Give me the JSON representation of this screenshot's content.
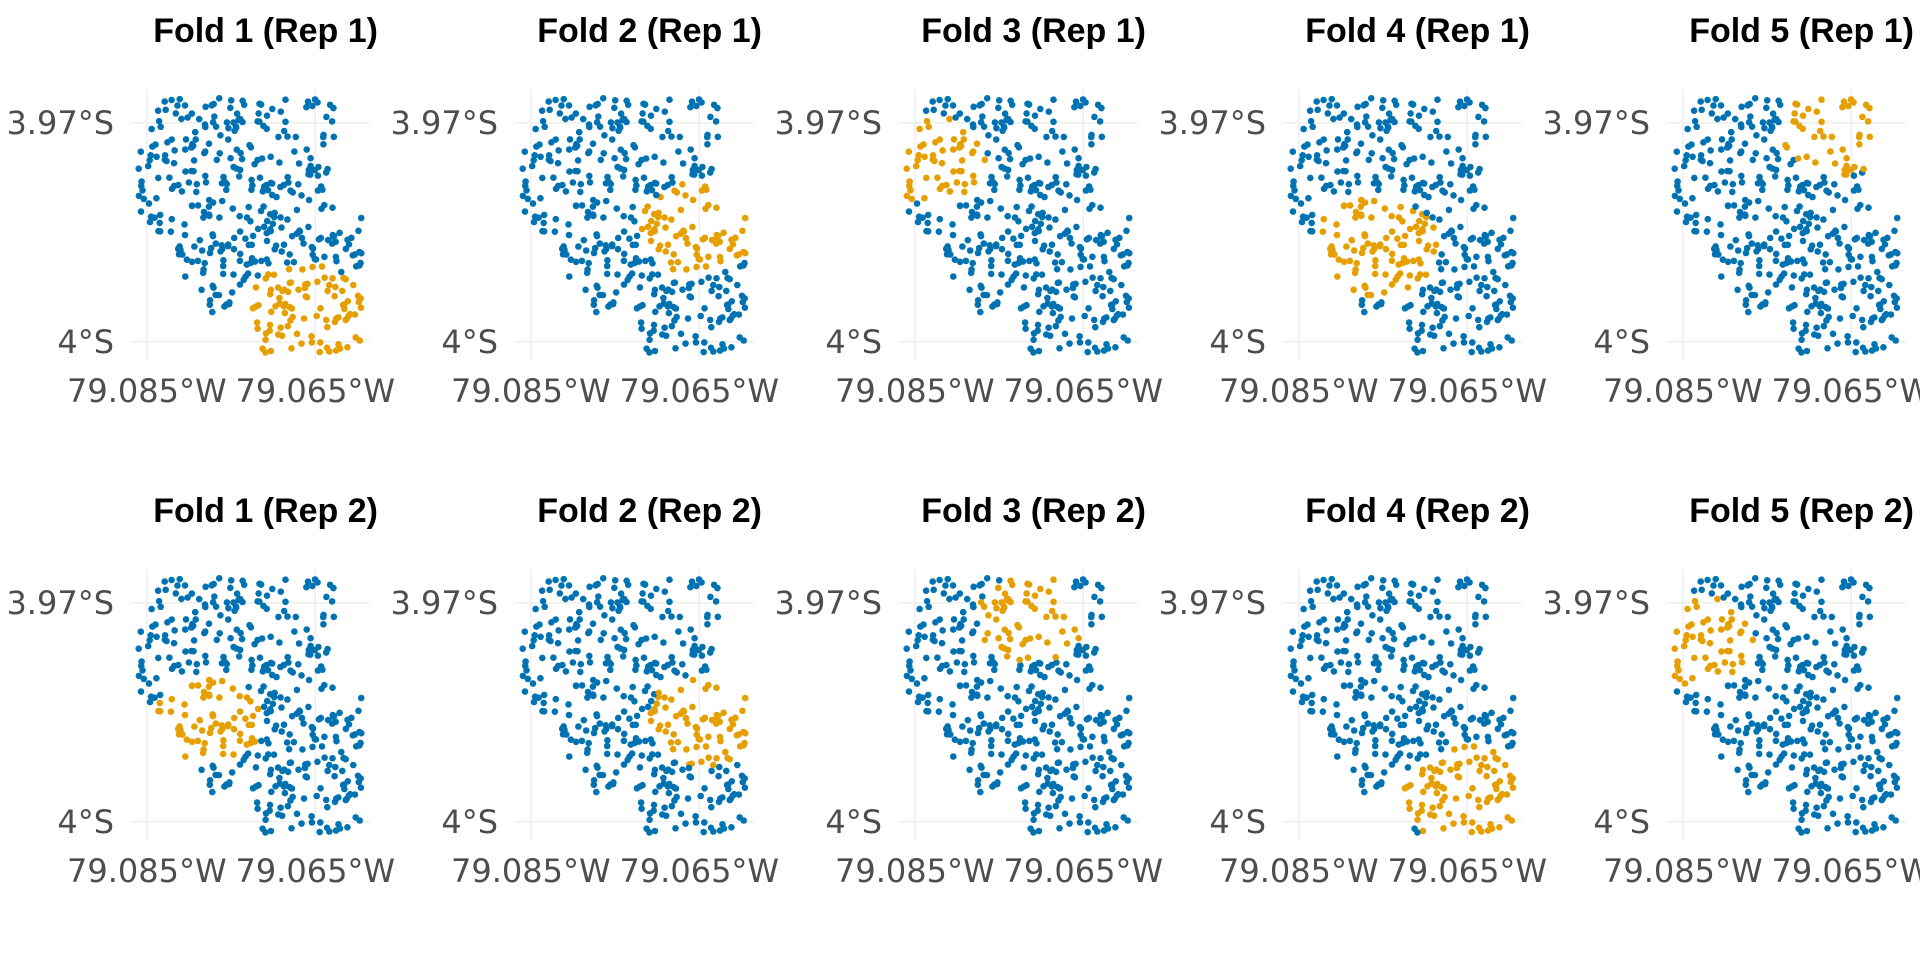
{
  "chart_data": {
    "type": "scatter",
    "layout": {
      "rows": 2,
      "cols": 5
    },
    "colors": {
      "training": "#0072B2",
      "test": "#E69F00"
    },
    "x_ticks": [
      {
        "value": -79.085,
        "label": "79.085°W"
      },
      {
        "value": -79.065,
        "label": "79.065°W"
      }
    ],
    "y_ticks": [
      {
        "value": -3.97,
        "label": "3.97°S"
      },
      {
        "value": -4.0,
        "label": "4°S"
      }
    ],
    "xlim": [
      -79.087,
      -79.0585
    ],
    "ylim": [
      -4.0025,
      -3.9655
    ],
    "panels": [
      {
        "title": "Fold 1 (Rep 1)",
        "test_region": {
          "lon": -79.0665,
          "lat": -3.9966,
          "r": 0.0073
        }
      },
      {
        "title": "Fold 2 (Rep 1)",
        "test_region": {
          "lon": -79.065,
          "lat": -3.9845,
          "r": 0.0065
        }
      },
      {
        "title": "Fold 3 (Rep 1)",
        "test_region": {
          "lon": -79.083,
          "lat": -3.975,
          "r": 0.006
        }
      },
      {
        "title": "Fold 4 (Rep 1)",
        "test_region": {
          "lon": -79.076,
          "lat": -3.987,
          "r": 0.007
        }
      },
      {
        "title": "Fold 5 (Rep 1)",
        "test_region": {
          "lon": -79.0667,
          "lat": -3.9712,
          "r": 0.006
        }
      },
      {
        "title": "Fold 1 (Rep 2)",
        "test_region": {
          "lon": -79.0775,
          "lat": -3.986,
          "r": 0.006
        }
      },
      {
        "title": "Fold 2 (Rep 2)",
        "test_region": {
          "lon": -79.064,
          "lat": -3.986,
          "r": 0.0065
        }
      },
      {
        "title": "Fold 3 (Rep 2)",
        "test_region": {
          "lon": -79.071,
          "lat": -3.972,
          "r": 0.006
        }
      },
      {
        "title": "Fold 4 (Rep 2)",
        "test_region": {
          "lon": -79.065,
          "lat": -3.9965,
          "r": 0.007
        }
      },
      {
        "title": "Fold 5 (Rep 2)",
        "test_region": {
          "lon": -79.0835,
          "lat": -3.9755,
          "r": 0.0065
        }
      }
    ]
  }
}
